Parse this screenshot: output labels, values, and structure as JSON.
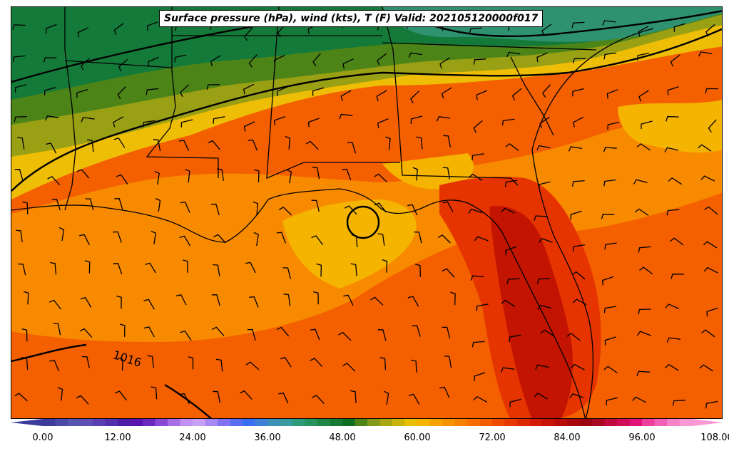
{
  "title": "Surface pressure (hPa), wind (kts), T (F) Valid: 202105120000f017",
  "isobar_label": "1016",
  "colorbar": {
    "tick_labels": [
      "0.00",
      "12.00",
      "24.00",
      "36.00",
      "48.00",
      "60.00",
      "72.00",
      "84.00",
      "96.00",
      "108.00"
    ],
    "colors": [
      "#3b3b9c",
      "#4a4aa8",
      "#5555b0",
      "#5e4fb5",
      "#5a3fb3",
      "#5330ad",
      "#4d1ea8",
      "#5a14b0",
      "#6a28c0",
      "#8a48d6",
      "#a86ee6",
      "#c090f2",
      "#c8a0f6",
      "#a888f4",
      "#8070f2",
      "#5a6cf0",
      "#3a6ef0",
      "#3e80d8",
      "#3a92b8",
      "#389aa0",
      "#2e9a7a",
      "#26935e",
      "#1f8745",
      "#167a36",
      "#0e6e22",
      "#4f8419",
      "#82991a",
      "#a8a612",
      "#cbb30c",
      "#e8be06",
      "#f4b400",
      "#f6a200",
      "#f89200",
      "#f88000",
      "#f86e00",
      "#f45c00",
      "#ee4a00",
      "#e63800",
      "#de2a00",
      "#d61c00",
      "#c81200",
      "#b80a06",
      "#a8060a",
      "#9a0410",
      "#a80822",
      "#c00a3e",
      "#d00e58",
      "#e01478",
      "#ea3e9a",
      "#f060b6",
      "#f682c8",
      "#fa98d4"
    ]
  },
  "legend_units": "T (F)",
  "colors": {
    "cold_green": "#147a3a",
    "teal": "#2e9270",
    "olive": "#8a9c16",
    "yellow": "#eebd06",
    "orange_light": "#f8a200",
    "orange": "#f88a00",
    "orange_dark": "#f46000",
    "red": "#e63400",
    "deep_red": "#c21400"
  }
}
